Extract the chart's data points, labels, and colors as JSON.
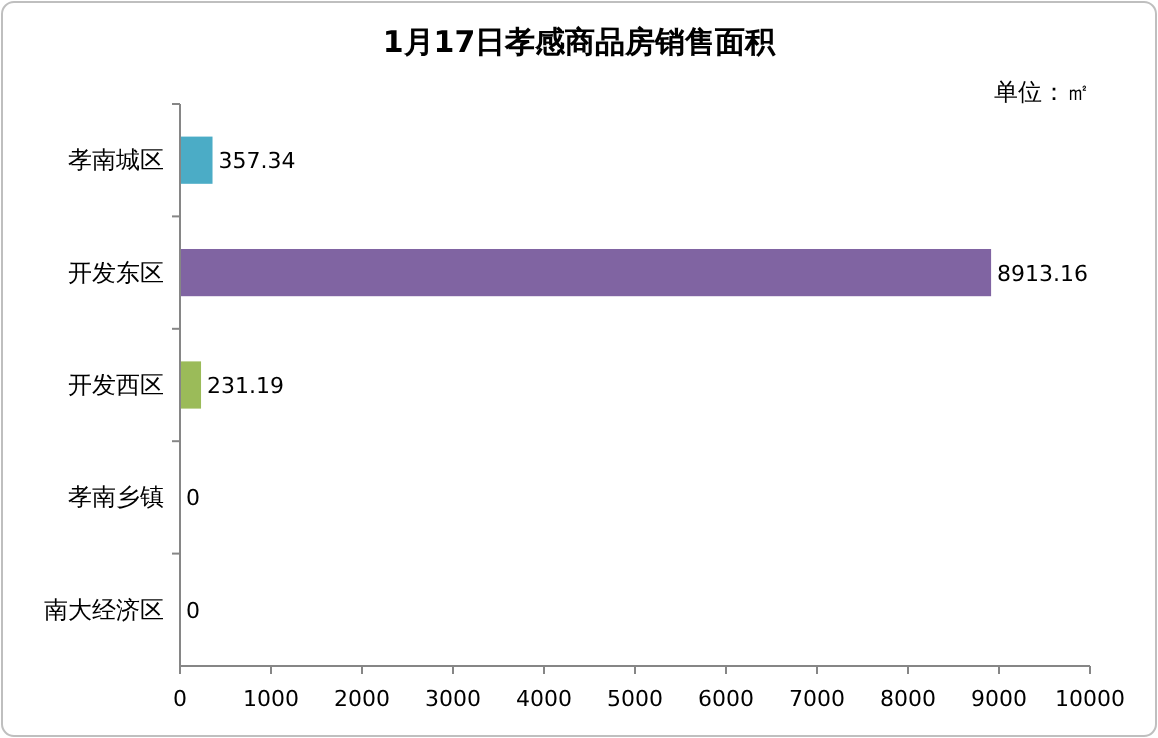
{
  "chart_data": {
    "type": "bar",
    "orientation": "horizontal",
    "title": "1月17日孝感商品房销售面积",
    "annotations": [
      "单位：㎡"
    ],
    "categories": [
      "孝南城区",
      "开发东区",
      "开发西区",
      "孝南乡镇",
      "南大经济区"
    ],
    "values": [
      357.34,
      8913.16,
      231.19,
      0,
      0
    ],
    "colors": [
      "#4bacc6",
      "#8064a2",
      "#9bbb59",
      "#4f81bd",
      "#c0504d"
    ],
    "xlim": [
      0,
      10000
    ],
    "xticks": [
      0,
      1000,
      2000,
      3000,
      4000,
      5000,
      6000,
      7000,
      8000,
      9000,
      10000
    ],
    "data_labels": true,
    "grid": false
  }
}
